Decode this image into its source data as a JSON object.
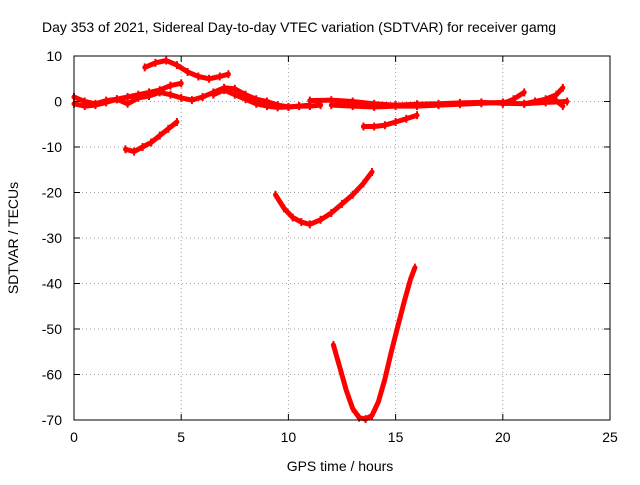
{
  "chart_data": {
    "type": "scatter",
    "title": "Day 353 of 2021, Sidereal Day-to-day VTEC variation (SDTVAR) for receiver gamg",
    "xlabel": "GPS time / hours",
    "ylabel": "SDTVAR / TECUs",
    "xlim": [
      0,
      25
    ],
    "ylim": [
      -70,
      10
    ],
    "xticks": [
      0,
      5,
      10,
      15,
      20,
      25
    ],
    "yticks": [
      10,
      0,
      -10,
      -20,
      -30,
      -40,
      -50,
      -60,
      -70
    ],
    "grid": true,
    "legend": "none",
    "series_color": "#ff0000",
    "tracks": [
      {
        "x": [
          0.0,
          0.5,
          1.0,
          1.5,
          2.0,
          2.5,
          3.0,
          3.5,
          4.0,
          4.5,
          5.0,
          5.5,
          6.0,
          6.5,
          7.0,
          7.5,
          8.0,
          8.5,
          9.0,
          9.5,
          10.0,
          10.5,
          11.0
        ],
        "y": [
          1.0,
          0.0,
          -0.5,
          0.2,
          0.5,
          -0.5,
          0.8,
          1.2,
          2.0,
          1.5,
          0.8,
          0.3,
          1.0,
          2.0,
          3.0,
          2.8,
          1.5,
          0.5,
          0.0,
          -0.8,
          -1.2,
          -1.0,
          -0.8
        ]
      },
      {
        "x": [
          0.0,
          0.5,
          1.0,
          1.5,
          2.0,
          2.5,
          3.0,
          3.5,
          4.0,
          4.5,
          5.0
        ],
        "y": [
          -0.5,
          -1.0,
          -0.8,
          -0.2,
          0.5,
          1.0,
          1.5,
          2.0,
          2.5,
          3.5,
          4.0
        ]
      },
      {
        "x": [
          3.3,
          3.8,
          4.3,
          4.8,
          5.3,
          5.8,
          6.3,
          6.8,
          7.2
        ],
        "y": [
          7.5,
          8.5,
          9.0,
          8.0,
          6.5,
          5.5,
          5.0,
          5.5,
          6.0
        ]
      },
      {
        "x": [
          2.4,
          2.8,
          3.2,
          3.6,
          4.0,
          4.4,
          4.8
        ],
        "y": [
          -10.5,
          -11.0,
          -10.0,
          -9.0,
          -7.5,
          -6.0,
          -4.5
        ]
      },
      {
        "x": [
          6.5,
          7.0,
          7.5,
          8.0,
          8.5,
          9.0,
          9.5,
          10.0,
          10.5,
          11.0,
          11.5
        ],
        "y": [
          1.5,
          2.5,
          1.5,
          0.5,
          -0.5,
          -1.0,
          -1.3,
          -1.2,
          -1.0,
          -1.0,
          -0.8
        ]
      },
      {
        "x": [
          11.0,
          12.0,
          13.0,
          14.0,
          15.0,
          16.0,
          17.0,
          18.0,
          19.0,
          20.0,
          21.0,
          22.0,
          23.0
        ],
        "y": [
          0.2,
          0.3,
          0.0,
          -0.5,
          -0.8,
          -0.6,
          -0.5,
          -0.3,
          -0.2,
          -0.4,
          -0.5,
          -0.2,
          0.0
        ]
      },
      {
        "x": [
          12.0,
          13.0,
          14.0,
          15.0,
          16.0,
          17.0,
          18.0,
          19.0,
          20.0,
          20.5
        ],
        "y": [
          -0.8,
          -1.0,
          -1.2,
          -1.0,
          -1.0,
          -0.8,
          -0.6,
          -0.4,
          -0.2,
          0.0
        ]
      },
      {
        "x": [
          20.0,
          20.5,
          21.0
        ],
        "y": [
          -0.5,
          0.5,
          2.0
        ]
      },
      {
        "x": [
          21.0,
          21.5,
          22.0,
          22.5,
          22.8
        ],
        "y": [
          -0.5,
          0.0,
          0.5,
          1.5,
          3.0
        ]
      },
      {
        "x": [
          22.0,
          22.4,
          22.8
        ],
        "y": [
          0.0,
          0.5,
          -1.0
        ]
      },
      {
        "x": [
          13.5,
          14.0,
          14.5,
          15.0,
          15.5,
          16.0
        ],
        "y": [
          -5.5,
          -5.5,
          -5.2,
          -4.5,
          -3.8,
          -3.0
        ]
      },
      {
        "x": [
          9.4,
          9.8,
          10.2,
          10.6,
          11.0,
          11.5,
          12.0,
          12.5,
          13.0,
          13.5,
          13.9
        ],
        "y": [
          -20.5,
          -23.5,
          -25.5,
          -26.5,
          -27.0,
          -26.0,
          -24.5,
          -22.5,
          -20.5,
          -18.0,
          -15.5
        ]
      },
      {
        "x": [
          12.1,
          12.4,
          12.7,
          13.0,
          13.3,
          13.6,
          13.9,
          14.2,
          14.5,
          14.8,
          15.1,
          15.4,
          15.7,
          15.9
        ],
        "y": [
          -53.5,
          -58.5,
          -63.5,
          -67.5,
          -69.5,
          -69.8,
          -69.0,
          -66.0,
          -61.0,
          -55.0,
          -49.5,
          -44.0,
          -39.0,
          -36.5
        ]
      }
    ]
  }
}
